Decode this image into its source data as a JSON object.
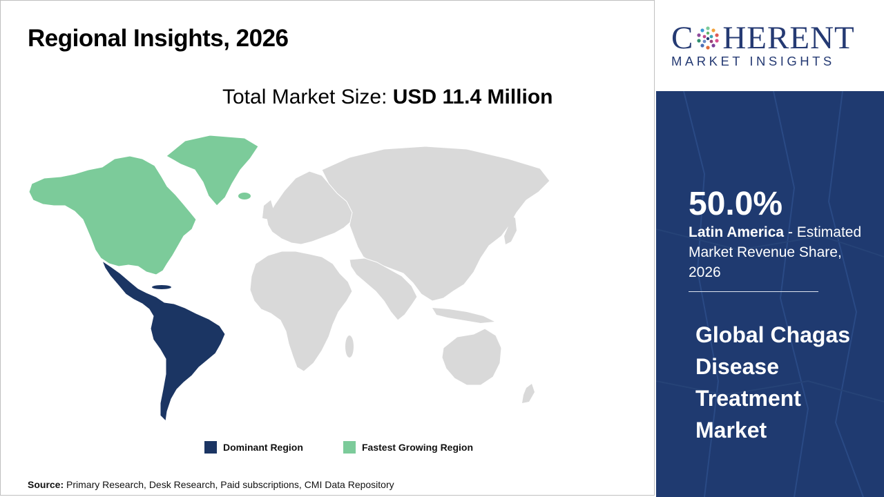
{
  "page": {
    "title": "Regional Insights, 2026",
    "market_size_label": "Total Market Size: ",
    "market_size_value": "USD 11.4 Million"
  },
  "legend": [
    {
      "label": "Dominant Region",
      "color": "#1b3563"
    },
    {
      "label": "Fastest Growing Region",
      "color": "#7ccb9a"
    }
  ],
  "map": {
    "dominant_region": "Latin America",
    "fastest_growing_region": "North America",
    "base_color": "#d9d9d9"
  },
  "source": {
    "label": "Source:",
    "text": " Primary Research, Desk Research, Paid subscriptions, CMI Data Repository"
  },
  "brand": {
    "name_left": "C",
    "name_right": "HERENT",
    "subtitle": "MARKET INSIGHTS",
    "color": "#253a73"
  },
  "highlight": {
    "percent": "50.0%",
    "region": "Latin America",
    "description": " - Estimated Market Revenue Share, 2026"
  },
  "market_name": "Global Chagas Disease Treatment Market",
  "colors": {
    "panel": "#1f3a70",
    "dominant": "#1b3563",
    "fastest": "#7ccb9a"
  }
}
